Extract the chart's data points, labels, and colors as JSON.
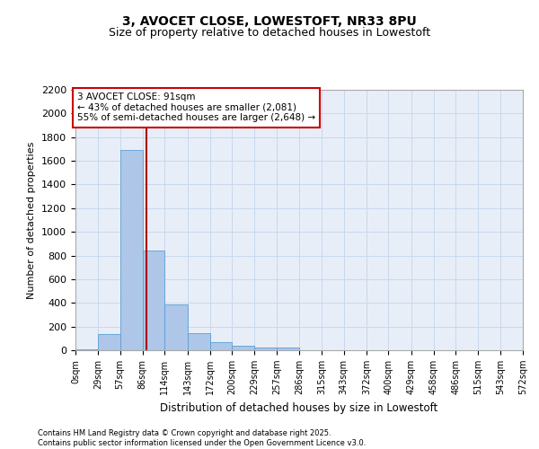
{
  "title_line1": "3, AVOCET CLOSE, LOWESTOFT, NR33 8PU",
  "title_line2": "Size of property relative to detached houses in Lowestoft",
  "xlabel": "Distribution of detached houses by size in Lowestoft",
  "ylabel": "Number of detached properties",
  "bar_color": "#aec6e8",
  "bar_edge_color": "#5a9fd4",
  "grid_color": "#c8d8ec",
  "bg_color": "#e8eef8",
  "annotation_box_color": "#cc0000",
  "vline_color": "#aa0000",
  "annotation_text": "3 AVOCET CLOSE: 91sqm\n← 43% of detached houses are smaller (2,081)\n55% of semi-detached houses are larger (2,648) →",
  "property_size_sqm": 91,
  "bin_edges": [
    0,
    29,
    57,
    86,
    114,
    143,
    172,
    200,
    229,
    257,
    286,
    315,
    343,
    372,
    400,
    429,
    458,
    486,
    515,
    543,
    572
  ],
  "bin_counts": [
    10,
    140,
    1690,
    840,
    390,
    145,
    70,
    35,
    20,
    20,
    0,
    0,
    0,
    0,
    0,
    0,
    0,
    0,
    0,
    0
  ],
  "ylim": [
    0,
    2200
  ],
  "yticks": [
    0,
    200,
    400,
    600,
    800,
    1000,
    1200,
    1400,
    1600,
    1800,
    2000,
    2200
  ],
  "footer_text": "Contains HM Land Registry data © Crown copyright and database right 2025.\nContains public sector information licensed under the Open Government Licence v3.0.",
  "tick_labels": [
    "0sqm",
    "29sqm",
    "57sqm",
    "86sqm",
    "114sqm",
    "143sqm",
    "172sqm",
    "200sqm",
    "229sqm",
    "257sqm",
    "286sqm",
    "315sqm",
    "343sqm",
    "372sqm",
    "400sqm",
    "429sqm",
    "458sqm",
    "486sqm",
    "515sqm",
    "543sqm",
    "572sqm"
  ]
}
